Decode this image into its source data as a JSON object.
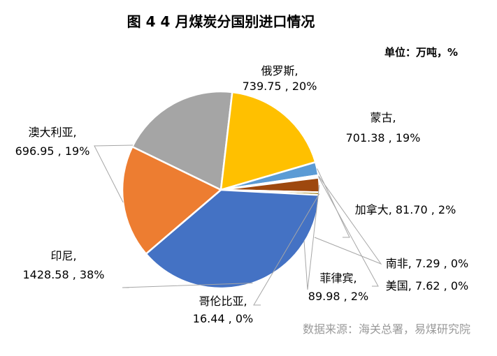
{
  "unit_note": "单位：万吨，%",
  "source_note": "数据来源：海关总署，易煤研究院",
  "chart_data": {
    "type": "pie",
    "title": "图 4  4 月煤炭分国别进口情况",
    "unit": "万吨",
    "slices": [
      {
        "name": "俄罗斯",
        "value": 739.75,
        "percent": "20%",
        "label": "739.75 , 20%",
        "color": "#a5a5a5"
      },
      {
        "name": "蒙古",
        "value": 701.38,
        "percent": "19%",
        "label": "701.38 , 19%",
        "color": "#ffc000"
      },
      {
        "name": "加拿大",
        "value": 81.7,
        "percent": "2%",
        "label": "81.70 , 2%",
        "color": "#5b9bd5"
      },
      {
        "name": "南非",
        "value": 7.29,
        "percent": "0%",
        "label": "7.29 , 0%",
        "color": "#264478"
      },
      {
        "name": "美国",
        "value": 7.62,
        "percent": "0%",
        "label": "7.62 , 0%",
        "color": "#636363"
      },
      {
        "name": "菲律宾",
        "value": 89.98,
        "percent": "2%",
        "label": "89.98 , 2%",
        "color": "#9e480e"
      },
      {
        "name": "哥伦比亚",
        "value": 16.44,
        "percent": "0%",
        "label": "16.44 , 0%",
        "color": "#997300"
      },
      {
        "name": "印尼",
        "value": 1428.58,
        "percent": "38%",
        "label": "1428.58 , 38%",
        "color": "#4472c4"
      },
      {
        "name": "澳大利亚",
        "value": 696.95,
        "percent": "19%",
        "label": "696.95 , 19%",
        "color": "#ed7d31"
      }
    ]
  }
}
